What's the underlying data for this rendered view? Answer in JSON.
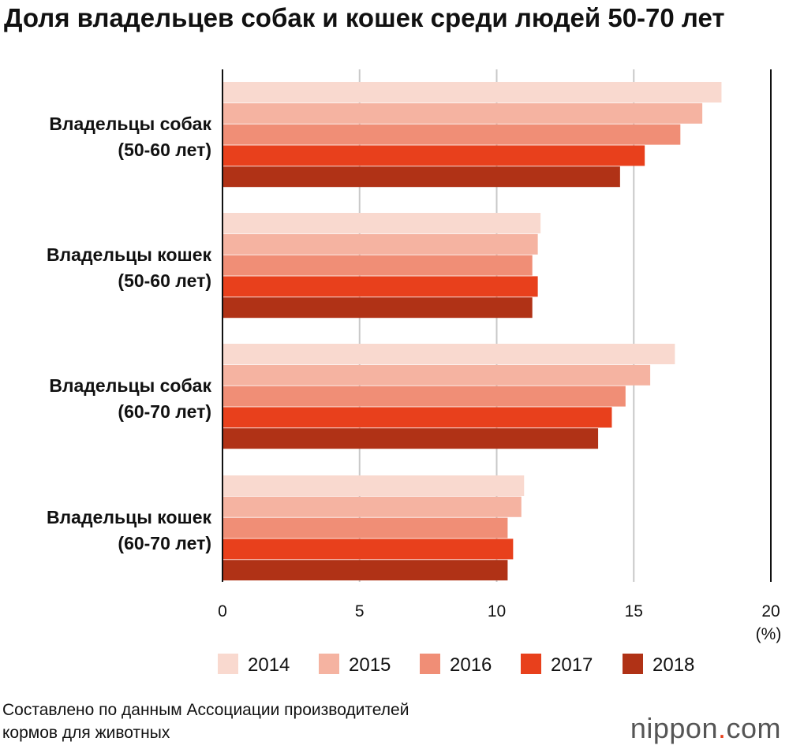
{
  "chart_data": {
    "type": "bar",
    "orientation": "horizontal",
    "title": "Доля владельцев собак и кошек среди людей 50-70 лет",
    "categories": [
      [
        "Владельцы собак",
        "(50-60 лет)"
      ],
      [
        "Владельцы кошек",
        "(50-60 лет)"
      ],
      [
        "Владельцы собак",
        "(60-70 лет)"
      ],
      [
        "Владельцы кошек",
        "(60-70 лет)"
      ]
    ],
    "series": [
      {
        "name": "2014",
        "color": "#f9d9cf",
        "values": [
          18.2,
          11.6,
          16.5,
          11.0
        ]
      },
      {
        "name": "2015",
        "color": "#f5b3a1",
        "values": [
          17.5,
          11.5,
          15.6,
          10.9
        ]
      },
      {
        "name": "2016",
        "color": "#f08e76",
        "values": [
          16.7,
          11.3,
          14.7,
          10.4
        ]
      },
      {
        "name": "2017",
        "color": "#e8401c",
        "values": [
          15.4,
          11.5,
          14.2,
          10.6
        ]
      },
      {
        "name": "2018",
        "color": "#b03216",
        "values": [
          14.5,
          11.3,
          13.7,
          10.4
        ]
      }
    ],
    "xlim": [
      0,
      20
    ],
    "xticks": [
      "0",
      "5",
      "10",
      "15",
      "20"
    ],
    "xunit": "(%)",
    "legend_position": "bottom"
  },
  "source": {
    "line1": "Составлено по данным Ассоциации производителей",
    "line2": "кормов для животных"
  },
  "brand": {
    "name": "nippon",
    "dot": ".",
    "tld": "com"
  }
}
